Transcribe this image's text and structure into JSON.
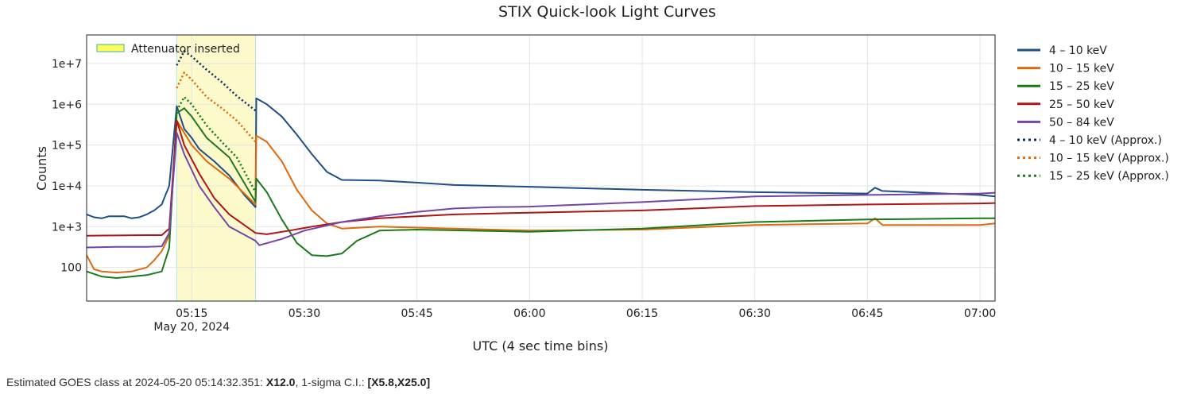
{
  "chart_data": {
    "type": "line",
    "title": "STIX Quick-look Light Curves",
    "xlabel": "UTC (4 sec time bins)",
    "ylabel": "Counts",
    "yscale": "log",
    "ylim": [
      15,
      50000000
    ],
    "xlim": [
      "05:01",
      "07:02"
    ],
    "x_ticks": [
      "05:15",
      "05:30",
      "05:45",
      "06:00",
      "06:15",
      "06:30",
      "06:45",
      "07:00"
    ],
    "x_date_label": "May 20, 2024",
    "y_ticks": [
      100,
      1000,
      10000,
      100000,
      1000000,
      10000000
    ],
    "y_tick_labels": [
      "100",
      "1e+3",
      "1e+4",
      "1e+5",
      "1e+6",
      "1e+7"
    ],
    "grid": true,
    "legend_position": "right",
    "shaded_region": {
      "label": "Attenuator inserted",
      "start": "05:13",
      "end": "05:23.5",
      "color": "#fcfacb"
    },
    "series": [
      {
        "name": "4 – 10 keV",
        "color": "#1f4f86",
        "dash": "solid",
        "points": [
          [
            "05:01",
            2000
          ],
          [
            "05:02",
            1700
          ],
          [
            "05:03",
            1600
          ],
          [
            "05:04",
            1800
          ],
          [
            "05:06",
            1800
          ],
          [
            "05:07",
            1600
          ],
          [
            "05:08",
            1700
          ],
          [
            "05:09",
            2000
          ],
          [
            "05:10",
            2500
          ],
          [
            "05:11",
            3500
          ],
          [
            "05:12",
            10000
          ],
          [
            "05:13",
            900000
          ],
          [
            "05:14",
            250000
          ],
          [
            "05:15",
            150000
          ],
          [
            "05:16",
            80000
          ],
          [
            "05:18",
            40000
          ],
          [
            "05:20",
            18000
          ],
          [
            "05:22",
            6000
          ],
          [
            "05:23.5",
            3000
          ],
          [
            "05:23.6",
            1400000
          ],
          [
            "05:25",
            1000000
          ],
          [
            "05:27",
            500000
          ],
          [
            "05:29",
            180000
          ],
          [
            "05:31",
            60000
          ],
          [
            "05:33",
            22000
          ],
          [
            "05:35",
            14000
          ],
          [
            "05:40",
            13500
          ],
          [
            "05:45",
            12000
          ],
          [
            "05:50",
            10500
          ],
          [
            "06:00",
            9500
          ],
          [
            "06:15",
            8000
          ],
          [
            "06:30",
            7000
          ],
          [
            "06:45",
            6500
          ],
          [
            "06:46",
            9000
          ],
          [
            "06:47",
            7500
          ],
          [
            "07:00",
            6000
          ],
          [
            "07:02",
            5500
          ]
        ]
      },
      {
        "name": "10 – 15 keV",
        "color": "#e06a10",
        "dash": "solid",
        "points": [
          [
            "05:01",
            200
          ],
          [
            "05:02",
            90
          ],
          [
            "05:03",
            80
          ],
          [
            "05:05",
            75
          ],
          [
            "05:07",
            80
          ],
          [
            "05:09",
            100
          ],
          [
            "05:10",
            150
          ],
          [
            "05:11",
            250
          ],
          [
            "05:12",
            600
          ],
          [
            "05:13",
            400000
          ],
          [
            "05:14",
            200000
          ],
          [
            "05:15",
            100000
          ],
          [
            "05:17",
            40000
          ],
          [
            "05:20",
            15000
          ],
          [
            "05:23.5",
            3500
          ],
          [
            "05:23.6",
            170000
          ],
          [
            "05:25",
            120000
          ],
          [
            "05:27",
            40000
          ],
          [
            "05:29",
            8000
          ],
          [
            "05:31",
            2500
          ],
          [
            "05:33",
            1200
          ],
          [
            "05:35",
            900
          ],
          [
            "05:40",
            1000
          ],
          [
            "05:45",
            950
          ],
          [
            "06:00",
            800
          ],
          [
            "06:15",
            850
          ],
          [
            "06:30",
            1100
          ],
          [
            "06:45",
            1200
          ],
          [
            "06:46",
            1600
          ],
          [
            "06:47",
            1100
          ],
          [
            "07:00",
            1100
          ],
          [
            "07:02",
            1200
          ]
        ]
      },
      {
        "name": "15 – 25 keV",
        "color": "#1a7a1a",
        "dash": "solid",
        "points": [
          [
            "05:01",
            80
          ],
          [
            "05:03",
            60
          ],
          [
            "05:05",
            55
          ],
          [
            "05:07",
            60
          ],
          [
            "05:09",
            65
          ],
          [
            "05:11",
            80
          ],
          [
            "05:12",
            300
          ],
          [
            "05:13",
            600000
          ],
          [
            "05:14",
            800000
          ],
          [
            "05:15",
            500000
          ],
          [
            "05:17",
            150000
          ],
          [
            "05:20",
            50000
          ],
          [
            "05:23.5",
            4000
          ],
          [
            "05:23.6",
            15000
          ],
          [
            "05:25",
            7000
          ],
          [
            "05:27",
            1500
          ],
          [
            "05:29",
            400
          ],
          [
            "05:31",
            200
          ],
          [
            "05:33",
            190
          ],
          [
            "05:35",
            220
          ],
          [
            "05:37",
            450
          ],
          [
            "05:40",
            800
          ],
          [
            "05:45",
            850
          ],
          [
            "06:00",
            750
          ],
          [
            "06:15",
            900
          ],
          [
            "06:30",
            1300
          ],
          [
            "06:45",
            1500
          ],
          [
            "07:00",
            1600
          ],
          [
            "07:02",
            1600
          ]
        ]
      },
      {
        "name": "25 – 50 keV",
        "color": "#b01414",
        "dash": "solid",
        "points": [
          [
            "05:01",
            600
          ],
          [
            "05:05",
            610
          ],
          [
            "05:09",
            620
          ],
          [
            "05:11",
            620
          ],
          [
            "05:12",
            900
          ],
          [
            "05:13",
            400000
          ],
          [
            "05:14",
            100000
          ],
          [
            "05:16",
            20000
          ],
          [
            "05:18",
            5000
          ],
          [
            "05:20",
            2000
          ],
          [
            "05:23.5",
            700
          ],
          [
            "05:25",
            650
          ],
          [
            "05:28",
            800
          ],
          [
            "05:31",
            1000
          ],
          [
            "05:35",
            1300
          ],
          [
            "05:40",
            1600
          ],
          [
            "05:45",
            1800
          ],
          [
            "05:50",
            2000
          ],
          [
            "06:00",
            2200
          ],
          [
            "06:15",
            2500
          ],
          [
            "06:30",
            3200
          ],
          [
            "06:45",
            3500
          ],
          [
            "07:00",
            3700
          ],
          [
            "07:02",
            3800
          ]
        ]
      },
      {
        "name": "50 – 84 keV",
        "color": "#7345a6",
        "dash": "solid",
        "points": [
          [
            "05:01",
            310
          ],
          [
            "05:05",
            320
          ],
          [
            "05:09",
            320
          ],
          [
            "05:11",
            330
          ],
          [
            "05:12",
            700
          ],
          [
            "05:13",
            200000
          ],
          [
            "05:14",
            60000
          ],
          [
            "05:16",
            10000
          ],
          [
            "05:18",
            3000
          ],
          [
            "05:20",
            1000
          ],
          [
            "05:23.5",
            450
          ],
          [
            "05:24",
            350
          ],
          [
            "05:27",
            500
          ],
          [
            "05:30",
            800
          ],
          [
            "05:35",
            1300
          ],
          [
            "05:40",
            1800
          ],
          [
            "05:45",
            2300
          ],
          [
            "05:50",
            2800
          ],
          [
            "05:55",
            3000
          ],
          [
            "06:00",
            3100
          ],
          [
            "06:15",
            4000
          ],
          [
            "06:30",
            5500
          ],
          [
            "06:45",
            6000
          ],
          [
            "07:00",
            6500
          ],
          [
            "07:02",
            6800
          ]
        ]
      },
      {
        "name": "4 – 10 keV (Approx.)",
        "color": "#12305a",
        "dash": "dotted",
        "points": [
          [
            "05:13",
            9000000
          ],
          [
            "05:14",
            20000000
          ],
          [
            "05:15",
            15000000
          ],
          [
            "05:17",
            7000000
          ],
          [
            "05:19",
            3500000
          ],
          [
            "05:21",
            1600000
          ],
          [
            "05:23.5",
            700000
          ]
        ]
      },
      {
        "name": "10 – 15 keV (Approx.)",
        "color": "#e06a10",
        "dash": "dotted",
        "points": [
          [
            "05:13",
            2500000
          ],
          [
            "05:14",
            6000000
          ],
          [
            "05:15",
            4000000
          ],
          [
            "05:17",
            1500000
          ],
          [
            "05:19",
            800000
          ],
          [
            "05:21",
            400000
          ],
          [
            "05:23.5",
            120000
          ]
        ]
      },
      {
        "name": "15 – 25 keV (Approx.)",
        "color": "#1a7a1a",
        "dash": "dotted",
        "points": [
          [
            "05:13",
            700000
          ],
          [
            "05:14",
            1500000
          ],
          [
            "05:15",
            1000000
          ],
          [
            "05:17",
            300000
          ],
          [
            "05:19",
            120000
          ],
          [
            "05:21",
            50000
          ],
          [
            "05:23.5",
            7000
          ]
        ]
      }
    ]
  },
  "footer": {
    "prefix": "Estimated GOES class at 2024-05-20 05:14:32.351: ",
    "goes_class": "X12.0",
    "ci_prefix": ", 1-sigma C.I.: ",
    "ci_value": "[X5.8,X25.0]"
  }
}
